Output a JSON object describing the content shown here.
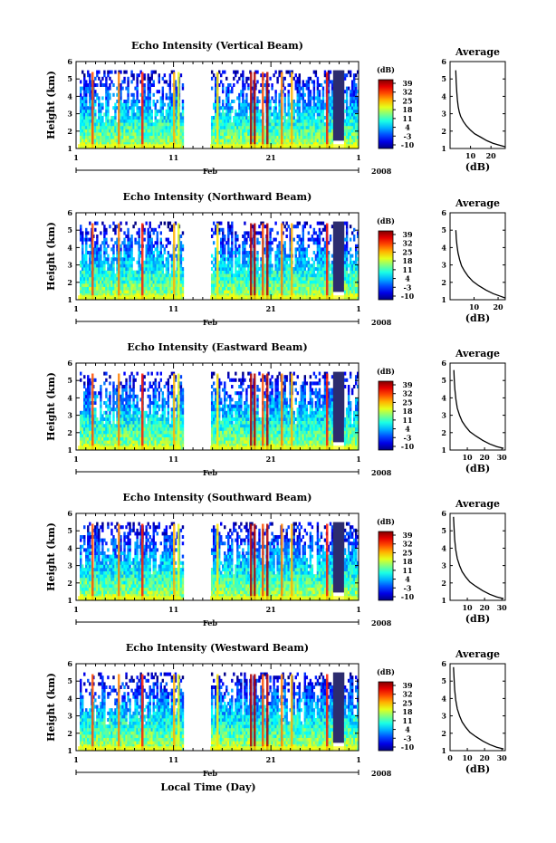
{
  "chart_data": [
    {
      "type": "heatmap",
      "title": "Echo Intensity (Vertical Beam)",
      "ylabel": "Height (km)",
      "ylim": [
        1,
        6
      ],
      "yticks": [
        "1",
        "2",
        "3",
        "4",
        "5",
        "6"
      ],
      "xticks": [
        "1",
        "11",
        "21",
        "1"
      ],
      "month_label": "Feb",
      "year_label": "2008",
      "colorbar": {
        "title": "(dB)",
        "ticks": [
          "39",
          "32",
          "25",
          "18",
          "11",
          "4",
          "-3",
          "-10"
        ]
      },
      "average": {
        "title": "Average",
        "xlabel": "(dB)",
        "xlim": [
          0,
          27
        ],
        "xticks": [
          "10",
          "20"
        ],
        "x": [
          27,
          24,
          21,
          18,
          15,
          12,
          10,
          8,
          6.5,
          5.2,
          4.5,
          4.0,
          3.6,
          3.3,
          3.0,
          2.8
        ],
        "y": [
          1.1,
          1.2,
          1.3,
          1.45,
          1.65,
          1.85,
          2.05,
          2.3,
          2.55,
          2.85,
          3.1,
          3.4,
          3.8,
          4.2,
          4.8,
          5.5
        ]
      }
    },
    {
      "type": "heatmap",
      "title": "Echo Intensity (Northward Beam)",
      "ylabel": "Height (km)",
      "ylim": [
        1,
        6
      ],
      "yticks": [
        "1",
        "2",
        "3",
        "4",
        "5",
        "6"
      ],
      "xticks": [
        "1",
        "11",
        "21",
        "1"
      ],
      "month_label": "Feb",
      "year_label": "2008",
      "colorbar": {
        "title": "(dB)",
        "ticks": [
          "39",
          "32",
          "25",
          "18",
          "11",
          "4",
          "-3",
          "-10"
        ]
      },
      "average": {
        "title": "Average",
        "xlabel": "(dB)",
        "xlim": [
          0,
          23
        ],
        "xticks": [
          "10",
          "20"
        ],
        "x": [
          23,
          21,
          18,
          15,
          12,
          9.5,
          7.5,
          6,
          4.8,
          4.0,
          3.3,
          2.9,
          2.6,
          2.4
        ],
        "y": [
          1.1,
          1.2,
          1.35,
          1.55,
          1.8,
          2.05,
          2.35,
          2.65,
          2.95,
          3.3,
          3.7,
          4.1,
          4.5,
          5.0
        ]
      }
    },
    {
      "type": "heatmap",
      "title": "Echo Intensity (Eastward Beam)",
      "ylabel": "Height (km)",
      "ylim": [
        1,
        6
      ],
      "yticks": [
        "1",
        "2",
        "3",
        "4",
        "5",
        "6"
      ],
      "xticks": [
        "1",
        "11",
        "21",
        "1"
      ],
      "month_label": "Feb",
      "year_label": "2008",
      "colorbar": {
        "title": "(dB)",
        "ticks": [
          "39",
          "32",
          "25",
          "18",
          "11",
          "4",
          "-3",
          "-10"
        ]
      },
      "average": {
        "title": "Average",
        "xlabel": "(dB)",
        "xlim": [
          0,
          32
        ],
        "xticks": [
          "10",
          "20",
          "30"
        ],
        "x": [
          31,
          27,
          23,
          19,
          15,
          11.5,
          9,
          7,
          5.5,
          4.2,
          3.4,
          2.8,
          2.4,
          2.2
        ],
        "y": [
          1.1,
          1.2,
          1.35,
          1.55,
          1.8,
          2.05,
          2.35,
          2.65,
          3.0,
          3.4,
          3.9,
          4.5,
          5.1,
          5.6
        ]
      }
    },
    {
      "type": "heatmap",
      "title": "Echo Intensity (Southward Beam)",
      "ylabel": "Height (km)",
      "ylim": [
        1,
        6
      ],
      "yticks": [
        "1",
        "2",
        "3",
        "4",
        "5",
        "6"
      ],
      "xticks": [
        "1",
        "11",
        "21",
        "1"
      ],
      "month_label": "Feb",
      "year_label": "2008",
      "colorbar": {
        "title": "(dB)",
        "ticks": [
          "39",
          "32",
          "25",
          "18",
          "11",
          "4",
          "-3",
          "-10"
        ]
      },
      "average": {
        "title": "Average",
        "xlabel": "(dB)",
        "xlim": [
          0,
          32
        ],
        "xticks": [
          "10",
          "20",
          "30"
        ],
        "x": [
          31,
          27,
          23,
          19,
          15,
          11.5,
          9,
          7,
          5.5,
          4.2,
          3.3,
          2.7,
          2.3,
          2.0
        ],
        "y": [
          1.1,
          1.2,
          1.35,
          1.55,
          1.8,
          2.05,
          2.35,
          2.65,
          3.0,
          3.4,
          3.9,
          4.5,
          5.2,
          5.8
        ]
      }
    },
    {
      "type": "heatmap",
      "title": "Echo Intensity (Westward Beam)",
      "ylabel": "Height (km)",
      "ylim": [
        1,
        6
      ],
      "yticks": [
        "1",
        "2",
        "3",
        "4",
        "5",
        "6"
      ],
      "xticks": [
        "1",
        "11",
        "21",
        "1"
      ],
      "month_label": "Feb",
      "year_label": "2008",
      "xlabel": "Local Time (Day)",
      "colorbar": {
        "title": "(dB)",
        "ticks": [
          "39",
          "32",
          "25",
          "18",
          "11",
          "4",
          "-3",
          "-10"
        ]
      },
      "average": {
        "title": "Average",
        "xlabel": "(dB)",
        "xlim": [
          0,
          32
        ],
        "xticks": [
          "0",
          "10",
          "20",
          "30"
        ],
        "x": [
          31,
          27,
          23,
          19,
          15,
          11.5,
          9,
          7,
          5.5,
          4.2,
          3.3,
          2.7,
          2.3,
          2.0
        ],
        "y": [
          1.1,
          1.2,
          1.35,
          1.55,
          1.8,
          2.05,
          2.35,
          2.65,
          3.0,
          3.4,
          3.9,
          4.5,
          5.2,
          5.8
        ]
      }
    }
  ]
}
